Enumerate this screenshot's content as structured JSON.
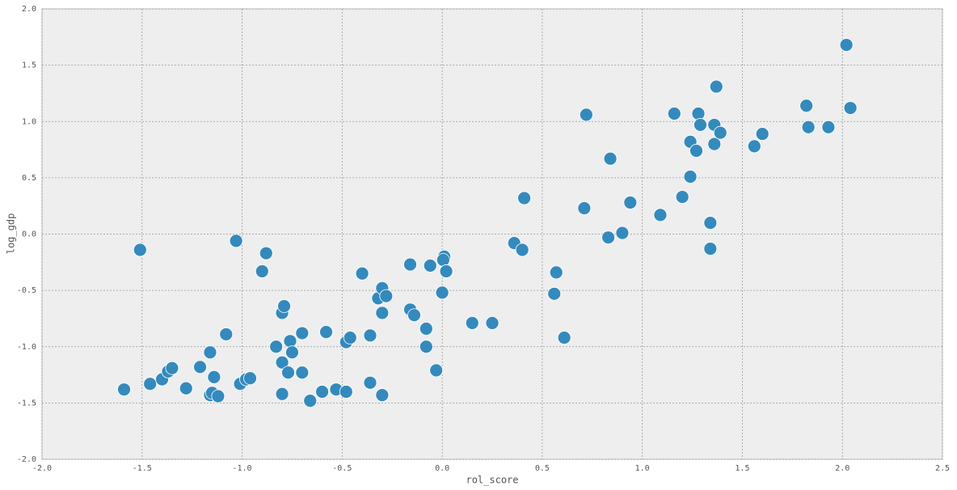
{
  "chart_data": {
    "type": "scatter",
    "xlabel": "rol_score",
    "ylabel": "log_gdp",
    "color": "#348abd",
    "grid": true,
    "xlim": [
      -2.0,
      2.5
    ],
    "ylim": [
      -2.0,
      2.0
    ],
    "xticks": [
      {
        "value": -2.0,
        "label": "-2.0"
      },
      {
        "value": -1.5,
        "label": "-1.5"
      },
      {
        "value": -1.0,
        "label": "-1.0"
      },
      {
        "value": -0.5,
        "label": "-0.5"
      },
      {
        "value": 0.0,
        "label": "0.0"
      },
      {
        "value": 0.5,
        "label": "0.5"
      },
      {
        "value": 1.0,
        "label": "1.0"
      },
      {
        "value": 1.5,
        "label": "1.5"
      },
      {
        "value": 2.0,
        "label": "2.0"
      },
      {
        "value": 2.5,
        "label": "2.5"
      }
    ],
    "yticks": [
      {
        "value": -2.0,
        "label": "-2.0"
      },
      {
        "value": -1.5,
        "label": "-1.5"
      },
      {
        "value": -1.0,
        "label": "-1.0"
      },
      {
        "value": -0.5,
        "label": "-0.5"
      },
      {
        "value": 0.0,
        "label": "0.0"
      },
      {
        "value": 0.5,
        "label": "0.5"
      },
      {
        "value": 1.0,
        "label": "1.0"
      },
      {
        "value": 1.5,
        "label": "1.5"
      },
      {
        "value": 2.0,
        "label": "2.0"
      }
    ],
    "x": [
      -1.59,
      -1.51,
      -1.46,
      -1.4,
      -1.37,
      -1.35,
      -1.28,
      -1.21,
      -1.16,
      -1.16,
      -1.15,
      -1.14,
      -1.12,
      -1.08,
      -1.03,
      -1.01,
      -0.98,
      -0.96,
      -0.9,
      -0.88,
      -0.83,
      -0.8,
      -0.8,
      -0.8,
      -0.79,
      -0.77,
      -0.76,
      -0.75,
      -0.7,
      -0.7,
      -0.66,
      -0.6,
      -0.58,
      -0.53,
      -0.48,
      -0.48,
      -0.46,
      -0.4,
      -0.36,
      -0.36,
      -0.32,
      -0.3,
      -0.3,
      -0.3,
      -0.28,
      -0.16,
      -0.16,
      -0.14,
      -0.08,
      -0.08,
      -0.06,
      -0.03,
      0.0,
      0.01,
      0.005,
      0.02,
      0.15,
      0.25,
      0.36,
      0.4,
      0.41,
      0.56,
      0.57,
      0.61,
      0.71,
      0.72,
      0.83,
      0.84,
      0.9,
      0.94,
      1.09,
      1.16,
      1.2,
      1.24,
      1.24,
      1.27,
      1.28,
      1.29,
      1.34,
      1.34,
      1.36,
      1.36,
      1.37,
      1.39,
      1.56,
      1.6,
      1.82,
      1.83,
      1.93,
      2.02,
      2.04
    ],
    "values": [
      -1.38,
      -0.14,
      -1.33,
      -1.29,
      -1.22,
      -1.19,
      -1.37,
      -1.18,
      -1.05,
      -1.43,
      -1.41,
      -1.27,
      -1.44,
      -0.89,
      -0.06,
      -1.33,
      -1.29,
      -1.28,
      -0.33,
      -0.17,
      -1.0,
      -1.42,
      -0.7,
      -1.14,
      -0.64,
      -1.23,
      -0.95,
      -1.05,
      -1.23,
      -0.88,
      -1.48,
      -1.4,
      -0.87,
      -1.38,
      -1.4,
      -0.96,
      -0.92,
      -0.35,
      -0.9,
      -1.32,
      -0.57,
      -1.43,
      -0.7,
      -0.48,
      -0.55,
      -0.27,
      -0.67,
      -0.72,
      -0.84,
      -1.0,
      -0.28,
      -1.21,
      -0.52,
      -0.2,
      -0.23,
      -0.33,
      -0.79,
      -0.79,
      -0.08,
      -0.14,
      0.32,
      -0.53,
      -0.34,
      -0.92,
      0.23,
      1.06,
      -0.03,
      0.67,
      0.01,
      0.28,
      0.17,
      1.07,
      0.33,
      0.82,
      0.51,
      0.74,
      1.07,
      0.97,
      0.1,
      -0.13,
      0.97,
      0.8,
      1.31,
      0.9,
      0.78,
      0.89,
      1.14,
      0.95,
      0.95,
      1.68,
      1.12
    ]
  }
}
